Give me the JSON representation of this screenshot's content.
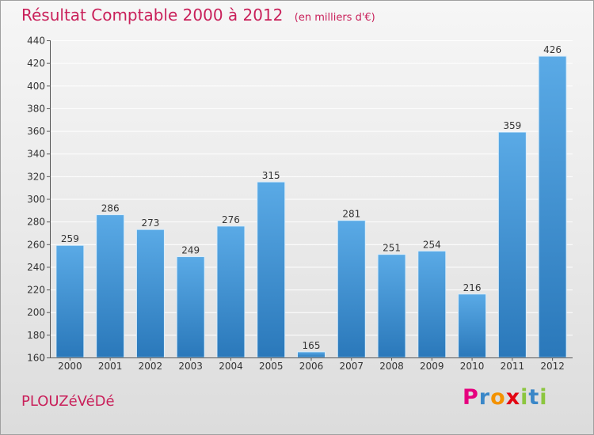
{
  "header": {
    "title": "Résultat Comptable 2000 à 2012",
    "subtitle": "(en milliers d'€)"
  },
  "footer": {
    "commune": "PLOUZéVéDé",
    "logo_letters": [
      "P",
      "r",
      "o",
      "x",
      "i",
      "t",
      "i"
    ],
    "logo_colors": [
      "#e6007e",
      "#3a87c8",
      "#f39200",
      "#e30613",
      "#8cc63f",
      "#3a87c8",
      "#8cc63f"
    ]
  },
  "colors": {
    "bar_top": "#5aaae6",
    "bar_bottom": "#2a78ba",
    "title": "#c9205a"
  },
  "chart_data": {
    "type": "bar",
    "title": "Résultat Comptable 2000 à 2012",
    "subtitle": "(en milliers d'€)",
    "xlabel": "",
    "ylabel": "",
    "categories": [
      "2000",
      "2001",
      "2002",
      "2003",
      "2004",
      "2005",
      "2006",
      "2007",
      "2008",
      "2009",
      "2010",
      "2011",
      "2012"
    ],
    "values": [
      259,
      286,
      273,
      249,
      276,
      315,
      165,
      281,
      251,
      254,
      216,
      359,
      426
    ],
    "ylim": [
      160,
      440
    ],
    "yticks": [
      160,
      180,
      200,
      220,
      240,
      260,
      280,
      300,
      320,
      340,
      360,
      380,
      400,
      420,
      440
    ],
    "grid": true,
    "legend": "none"
  }
}
